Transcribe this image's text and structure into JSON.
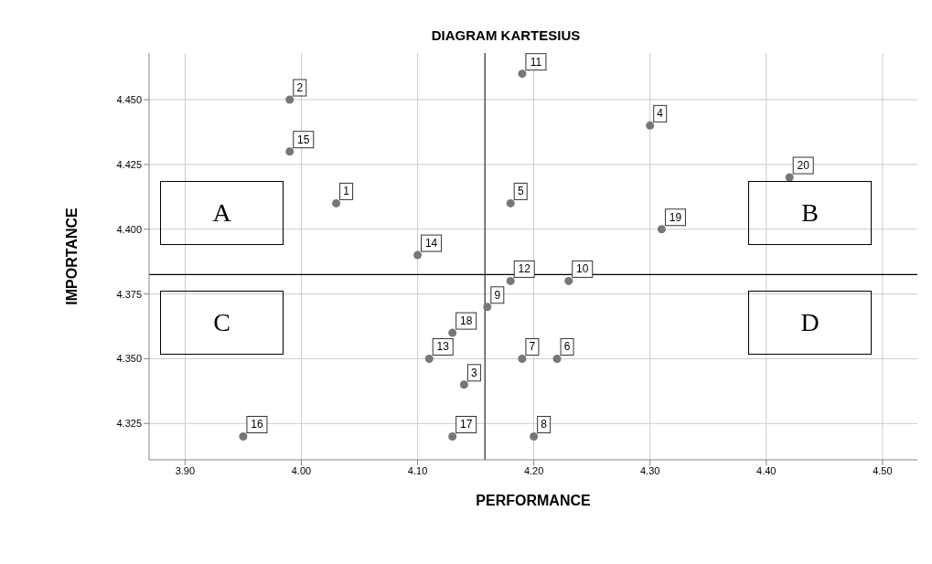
{
  "chart_data": {
    "type": "scatter",
    "title": "DIAGRAM KARTESIUS",
    "xlabel": "PERFORMANCE",
    "ylabel": "IMPORTANCE",
    "series": [
      {
        "color": "#777777",
        "x": [
          4.03,
          3.99,
          4.14,
          4.3,
          4.18,
          4.22,
          4.19,
          4.2,
          4.16,
          4.23,
          4.19,
          4.18,
          4.11,
          4.1,
          3.99,
          3.95,
          4.13,
          4.13,
          4.31,
          4.42
        ],
        "values": [
          4.41,
          4.45,
          4.34,
          4.44,
          4.41,
          4.35,
          4.35,
          4.32,
          4.37,
          4.38,
          4.46,
          4.38,
          4.35,
          4.39,
          4.43,
          4.32,
          4.32,
          4.36,
          4.4,
          4.42
        ]
      }
    ],
    "xlim": [
      3.869,
      4.53
    ],
    "ylim": [
      4.311,
      4.468
    ],
    "xticks": [
      {
        "value": 3.9,
        "label": "3.90"
      },
      {
        "value": 4.0,
        "label": "4.00"
      },
      {
        "value": 4.1,
        "label": "4.10"
      },
      {
        "value": 4.2,
        "label": "4.20"
      },
      {
        "value": 4.3,
        "label": "4.30"
      },
      {
        "value": 4.4,
        "label": "4.40"
      },
      {
        "value": 4.5,
        "label": "4.50"
      }
    ],
    "yticks": [
      {
        "value": 4.325,
        "label": "4.325"
      },
      {
        "value": 4.35,
        "label": "4.350"
      },
      {
        "value": 4.375,
        "label": "4.375"
      },
      {
        "value": 4.4,
        "label": "4.400"
      },
      {
        "value": 4.425,
        "label": "4.425"
      },
      {
        "value": 4.45,
        "label": "4.450"
      }
    ],
    "ref_lines": [
      {
        "axis": "x",
        "value": 4.158,
        "color": "#555555"
      },
      {
        "axis": "y",
        "value": 4.3825,
        "color": "#000000"
      }
    ],
    "annotations": [
      "A",
      "B",
      "C",
      "D",
      {
        "text": "1",
        "x": 4.03,
        "y": 4.41
      },
      {
        "text": "2",
        "x": 3.99,
        "y": 4.45
      },
      {
        "text": "3",
        "x": 4.14,
        "y": 4.34
      },
      {
        "text": "4",
        "x": 4.3,
        "y": 4.44
      },
      {
        "text": "5",
        "x": 4.18,
        "y": 4.41
      },
      {
        "text": "6",
        "x": 4.22,
        "y": 4.35
      },
      {
        "text": "7",
        "x": 4.19,
        "y": 4.35
      },
      {
        "text": "8",
        "x": 4.2,
        "y": 4.32
      },
      {
        "text": "9",
        "x": 4.16,
        "y": 4.37
      },
      {
        "text": "10",
        "x": 4.23,
        "y": 4.38
      },
      {
        "text": "11",
        "x": 4.19,
        "y": 4.46
      },
      {
        "text": "12",
        "x": 4.18,
        "y": 4.38
      },
      {
        "text": "13",
        "x": 4.11,
        "y": 4.35
      },
      {
        "text": "14",
        "x": 4.1,
        "y": 4.39
      },
      {
        "text": "15",
        "x": 3.99,
        "y": 4.43
      },
      {
        "text": "16",
        "x": 3.95,
        "y": 4.32
      },
      {
        "text": "17",
        "x": 4.13,
        "y": 4.32
      },
      {
        "text": "18",
        "x": 4.13,
        "y": 4.36
      },
      {
        "text": "19",
        "x": 4.31,
        "y": 4.4
      },
      {
        "text": "20",
        "x": 4.42,
        "y": 4.42
      }
    ],
    "grid": true,
    "marker": "circle"
  }
}
